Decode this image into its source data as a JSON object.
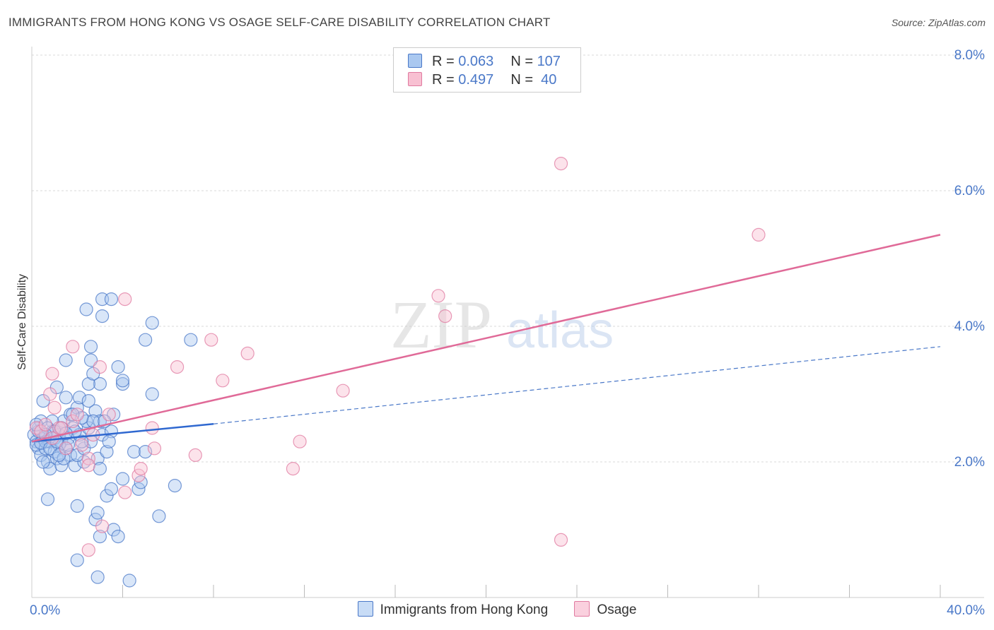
{
  "title": "IMMIGRANTS FROM HONG KONG VS OSAGE SELF-CARE DISABILITY CORRELATION CHART",
  "source": "Source: ZipAtlas.com",
  "watermark": {
    "zip": "ZIP",
    "atlas": "atlas"
  },
  "legend": {
    "rows": [
      {
        "r_label": "R = ",
        "r_value": "0.063",
        "n_label": "N = ",
        "n_value": "107",
        "color": "#4a78c8",
        "fill": "#aac8f0"
      },
      {
        "r_label": "R = ",
        "r_value": "0.497",
        "n_label": "N = ",
        "n_value": " 40",
        "color": "#e07aa0",
        "fill": "#f8c0d2"
      }
    ]
  },
  "bottom_legend": [
    {
      "label": "Immigrants from Hong Kong",
      "color": "#4a78c8",
      "fill": "#c8dcf6"
    },
    {
      "label": "Osage",
      "color": "#e07aa0",
      "fill": "#fad0de"
    }
  ],
  "chart_data": {
    "type": "scatter",
    "xlabel": "",
    "ylabel": "Self-Care Disability",
    "xlim": [
      0,
      40
    ],
    "ylim": [
      0,
      8.0
    ],
    "x_tick_labels": [
      "0.0%",
      "40.0%"
    ],
    "y_ticks": [
      2.0,
      4.0,
      6.0,
      8.0
    ],
    "y_tick_labels": [
      "2.0%",
      "4.0%",
      "6.0%",
      "8.0%"
    ],
    "grid": true,
    "series": [
      {
        "name": "Immigrants from Hong Kong",
        "color": "#4a78c8",
        "fill": "#aac8f0",
        "trend": {
          "x": [
            0,
            8.0
          ],
          "y": [
            2.3,
            2.56
          ],
          "dashed_x": [
            8.0,
            40.0
          ],
          "dashed_y": [
            2.56,
            3.7
          ]
        },
        "points": [
          [
            0.1,
            2.4
          ],
          [
            0.2,
            2.3
          ],
          [
            0.3,
            2.2
          ],
          [
            0.3,
            2.5
          ],
          [
            0.4,
            2.1
          ],
          [
            0.5,
            2.35
          ],
          [
            0.2,
            2.25
          ],
          [
            0.6,
            2.2
          ],
          [
            0.7,
            2.0
          ],
          [
            0.8,
            2.3
          ],
          [
            0.9,
            2.45
          ],
          [
            1.0,
            2.15
          ],
          [
            1.1,
            2.05
          ],
          [
            1.2,
            2.4
          ],
          [
            1.3,
            2.3
          ],
          [
            1.4,
            2.6
          ],
          [
            1.5,
            2.2
          ],
          [
            1.6,
            2.35
          ],
          [
            1.7,
            2.1
          ],
          [
            1.8,
            2.5
          ],
          [
            0.5,
            2.9
          ],
          [
            0.9,
            2.6
          ],
          [
            1.3,
            2.5
          ],
          [
            1.7,
            2.7
          ],
          [
            2.1,
            2.4
          ],
          [
            2.5,
            2.5
          ],
          [
            2.0,
            2.8
          ],
          [
            2.4,
            2.6
          ],
          [
            2.8,
            2.75
          ],
          [
            3.1,
            2.4
          ],
          [
            0.8,
            1.9
          ],
          [
            1.3,
            1.95
          ],
          [
            1.9,
            1.95
          ],
          [
            2.3,
            2.0
          ],
          [
            2.9,
            2.05
          ],
          [
            3.3,
            2.15
          ],
          [
            1.1,
            3.1
          ],
          [
            1.5,
            2.95
          ],
          [
            2.1,
            2.95
          ],
          [
            3.0,
            3.15
          ],
          [
            1.5,
            3.5
          ],
          [
            2.5,
            3.15
          ],
          [
            2.6,
            3.5
          ],
          [
            2.6,
            3.7
          ],
          [
            3.0,
            2.6
          ],
          [
            3.5,
            2.45
          ],
          [
            4.5,
            2.15
          ],
          [
            5.0,
            2.15
          ],
          [
            3.8,
            3.4
          ],
          [
            4.0,
            3.15
          ],
          [
            4.0,
            3.2
          ],
          [
            5.0,
            3.8
          ],
          [
            5.3,
            3.0
          ],
          [
            2.4,
            4.25
          ],
          [
            3.1,
            4.4
          ],
          [
            3.1,
            4.15
          ],
          [
            3.5,
            4.4
          ],
          [
            5.3,
            4.05
          ],
          [
            7.0,
            3.8
          ],
          [
            3.0,
            1.9
          ],
          [
            2.0,
            1.35
          ],
          [
            2.8,
            1.15
          ],
          [
            2.9,
            1.25
          ],
          [
            3.3,
            1.5
          ],
          [
            3.5,
            1.6
          ],
          [
            4.0,
            1.75
          ],
          [
            4.7,
            1.6
          ],
          [
            4.8,
            1.7
          ],
          [
            5.6,
            1.2
          ],
          [
            6.3,
            1.65
          ],
          [
            0.7,
            1.45
          ],
          [
            2.0,
            0.55
          ],
          [
            2.9,
            0.3
          ],
          [
            3.0,
            0.9
          ],
          [
            3.6,
            1.0
          ],
          [
            3.8,
            0.9
          ],
          [
            4.3,
            0.25
          ],
          [
            2.7,
            2.6
          ],
          [
            2.2,
            2.65
          ],
          [
            1.8,
            2.7
          ],
          [
            0.4,
            2.6
          ],
          [
            0.6,
            2.3
          ],
          [
            1.0,
            2.35
          ],
          [
            1.2,
            2.25
          ],
          [
            1.6,
            2.25
          ],
          [
            2.0,
            2.1
          ],
          [
            2.3,
            2.2
          ],
          [
            2.6,
            2.3
          ],
          [
            3.4,
            2.3
          ],
          [
            3.6,
            2.7
          ],
          [
            0.3,
            2.45
          ],
          [
            0.5,
            2.0
          ],
          [
            0.7,
            2.5
          ],
          [
            1.0,
            2.45
          ],
          [
            1.4,
            2.05
          ],
          [
            1.9,
            2.45
          ],
          [
            2.2,
            2.3
          ],
          [
            2.5,
            2.9
          ],
          [
            2.7,
            3.3
          ],
          [
            3.2,
            2.6
          ],
          [
            0.2,
            2.55
          ],
          [
            0.4,
            2.28
          ],
          [
            0.6,
            2.4
          ],
          [
            0.8,
            2.2
          ],
          [
            1.2,
            2.1
          ],
          [
            1.5,
            2.42
          ],
          [
            1.1,
            2.3
          ]
        ]
      },
      {
        "name": "Osage",
        "color": "#e07aa0",
        "fill": "#f8c0d2",
        "trend": {
          "x": [
            0,
            40.0
          ],
          "y": [
            2.3,
            5.35
          ]
        },
        "points": [
          [
            0.2,
            2.5
          ],
          [
            0.4,
            2.45
          ],
          [
            0.6,
            2.55
          ],
          [
            0.9,
            2.35
          ],
          [
            1.2,
            2.5
          ],
          [
            1.5,
            2.2
          ],
          [
            1.8,
            2.6
          ],
          [
            2.2,
            2.25
          ],
          [
            0.8,
            3.0
          ],
          [
            0.9,
            3.3
          ],
          [
            1.8,
            3.7
          ],
          [
            2.0,
            2.7
          ],
          [
            2.5,
            2.05
          ],
          [
            2.7,
            2.4
          ],
          [
            3.0,
            3.4
          ],
          [
            3.4,
            2.7
          ],
          [
            4.1,
            4.4
          ],
          [
            5.3,
            2.5
          ],
          [
            5.4,
            2.2
          ],
          [
            6.4,
            3.4
          ],
          [
            7.2,
            2.1
          ],
          [
            7.9,
            3.8
          ],
          [
            8.4,
            3.2
          ],
          [
            9.5,
            3.6
          ],
          [
            11.5,
            1.9
          ],
          [
            11.8,
            2.3
          ],
          [
            13.7,
            3.05
          ],
          [
            17.9,
            4.45
          ],
          [
            18.2,
            4.15
          ],
          [
            23.3,
            0.85
          ],
          [
            23.3,
            6.4
          ],
          [
            32.0,
            5.35
          ],
          [
            4.7,
            1.8
          ],
          [
            4.8,
            1.9
          ],
          [
            4.1,
            1.55
          ],
          [
            3.1,
            1.05
          ],
          [
            2.5,
            0.7
          ],
          [
            2.5,
            1.95
          ],
          [
            1.3,
            2.5
          ],
          [
            1.0,
            2.8
          ]
        ]
      }
    ]
  }
}
